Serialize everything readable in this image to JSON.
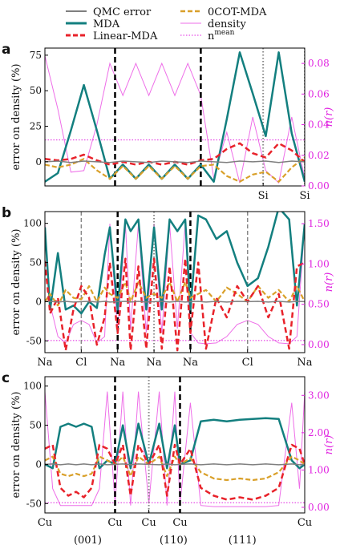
{
  "legend": {
    "entries": [
      {
        "label": "QMC error",
        "color": "#7f7f7f",
        "style": "solid"
      },
      {
        "label": "MDA",
        "color": "#137f7f",
        "style": "solid-thick"
      },
      {
        "label": "Linear-MDA",
        "color": "#e8222a",
        "style": "dashed-thick"
      },
      {
        "label": "0COT-MDA",
        "color": "#d9a02a",
        "style": "dashed"
      },
      {
        "label": "density",
        "color": "#ee6ee8",
        "style": "solid-thin"
      },
      {
        "label": "n^mean",
        "color": "#e020e0",
        "style": "dotted"
      }
    ]
  },
  "colors": {
    "qmc": "#7f7f7f",
    "mda": "#137f7f",
    "linear": "#e8222a",
    "cot": "#d9a02a",
    "density": "#ee6ee8",
    "nmean": "#e020e0",
    "right_axis": "#e020e0"
  },
  "chart_data": [
    {
      "panel": "a",
      "type": "line",
      "ylabel": "error on density (%)",
      "ylabel_right": "n(r)",
      "ylim": [
        -17,
        80
      ],
      "y_ticks": [
        -25,
        0,
        25,
        50,
        75
      ],
      "ylim_right": [
        0.0,
        0.09
      ],
      "y_ticks_right": [
        "0.00",
        "0.02",
        "0.04",
        "0.06",
        "0.08"
      ],
      "x_tick_labels": [
        {
          "x": 0.84,
          "label": "Si"
        },
        {
          "x": 1.0,
          "label": "Si"
        }
      ],
      "black_dashed_x": [
        0.27,
        0.6
      ],
      "gray_dotted_x": [
        0.84,
        1.0
      ],
      "nmean_right": 0.03,
      "x": [
        0.0,
        0.05,
        0.1,
        0.15,
        0.2,
        0.25,
        0.3,
        0.35,
        0.4,
        0.45,
        0.5,
        0.55,
        0.6,
        0.65,
        0.7,
        0.75,
        0.8,
        0.85,
        0.9,
        0.95,
        1.0
      ],
      "series": [
        {
          "name": "QMC error",
          "key": "qmc",
          "values": [
            0,
            0.5,
            -0.5,
            0.5,
            0,
            -0.5,
            0.5,
            0,
            -0.5,
            0.5,
            0,
            -0.5,
            0.5,
            0,
            -0.5,
            0.5,
            0,
            0.5,
            -0.5,
            0.5,
            0
          ]
        },
        {
          "name": "MDA",
          "key": "mda",
          "values": [
            -14,
            -8,
            22,
            54,
            22,
            -12,
            -2,
            -12,
            -2,
            -12,
            -2,
            -12,
            -2,
            -14,
            30,
            77,
            48,
            18,
            77,
            20,
            -14
          ]
        },
        {
          "name": "Linear-MDA",
          "key": "linear",
          "values": [
            2,
            1,
            2,
            5,
            1,
            -2,
            0,
            -2,
            0,
            -2,
            0,
            -2,
            1,
            2,
            9,
            13,
            6,
            3,
            13,
            8,
            0
          ]
        },
        {
          "name": "0COT-MDA",
          "key": "cot",
          "values": [
            -2,
            -4,
            -2,
            2,
            -6,
            -12,
            -3,
            -12,
            -3,
            -12,
            -3,
            -12,
            -3,
            -2,
            -10,
            -14,
            -9,
            -7,
            -14,
            -4,
            3
          ]
        }
      ],
      "density_right": [
        0.085,
        0.05,
        0.009,
        0.01,
        0.04,
        0.08,
        0.059,
        0.08,
        0.059,
        0.08,
        0.059,
        0.08,
        0.059,
        0.005,
        0.035,
        0.002,
        0.045,
        0.01,
        0.002,
        0.045,
        0.005
      ]
    },
    {
      "panel": "b",
      "type": "line",
      "ylabel": "error on density (%)",
      "ylabel_right": "n(r)",
      "ylim": [
        -65,
        115
      ],
      "y_ticks": [
        -50,
        0,
        50,
        100
      ],
      "ylim_right": [
        -0.1,
        1.65
      ],
      "y_ticks_right": [
        "0.00",
        "0.50",
        "1.00",
        "1.50"
      ],
      "x_tick_labels": [
        {
          "x": 0.0,
          "label": "Na"
        },
        {
          "x": 0.14,
          "label": "Cl"
        },
        {
          "x": 0.28,
          "label": "Na"
        },
        {
          "x": 0.42,
          "label": "Na"
        },
        {
          "x": 0.56,
          "label": "Na"
        },
        {
          "x": 0.78,
          "label": "Cl"
        },
        {
          "x": 1.0,
          "label": "Na"
        }
      ],
      "black_dashed_x": [
        0.28,
        0.56
      ],
      "gray_dashed_x": [
        0.14,
        0.78
      ],
      "gray_dotted_x": [
        0.42
      ],
      "nmean_right": 0.05,
      "x": [
        0.0,
        0.02,
        0.05,
        0.08,
        0.11,
        0.14,
        0.17,
        0.2,
        0.23,
        0.25,
        0.28,
        0.31,
        0.33,
        0.36,
        0.39,
        0.42,
        0.45,
        0.48,
        0.51,
        0.54,
        0.56,
        0.59,
        0.62,
        0.66,
        0.7,
        0.74,
        0.78,
        0.82,
        0.86,
        0.9,
        0.94,
        0.97,
        1.0
      ],
      "series": [
        {
          "name": "QMC error",
          "key": "qmc",
          "values": [
            0,
            0.5,
            -0.5,
            0.5,
            -0.5,
            0,
            0.5,
            -0.5,
            0.5,
            -0.5,
            0,
            0.5,
            -0.5,
            0.5,
            -0.5,
            0,
            0.5,
            -0.5,
            0.5,
            -0.5,
            0,
            0.5,
            -0.5,
            0.5,
            -0.5,
            0.5,
            0,
            0.5,
            -0.5,
            0.5,
            -0.5,
            0.5,
            0
          ]
        },
        {
          "name": "MDA",
          "key": "mda",
          "values": [
            95,
            -10,
            62,
            -10,
            -5,
            -15,
            0,
            -8,
            60,
            95,
            -10,
            105,
            90,
            105,
            -10,
            95,
            -10,
            105,
            90,
            105,
            -10,
            110,
            105,
            80,
            90,
            50,
            20,
            30,
            70,
            120,
            105,
            -5,
            100
          ]
        },
        {
          "name": "Linear-MDA",
          "key": "linear",
          "values": [
            52,
            -15,
            5,
            -62,
            -10,
            20,
            5,
            -55,
            -20,
            50,
            -40,
            55,
            -62,
            45,
            -60,
            55,
            -60,
            45,
            -62,
            55,
            -40,
            50,
            -60,
            5,
            -20,
            20,
            0,
            20,
            -20,
            10,
            -60,
            45,
            50
          ]
        },
        {
          "name": "0COT-MDA",
          "key": "cot",
          "values": [
            0,
            10,
            -5,
            15,
            5,
            3,
            20,
            0,
            18,
            10,
            5,
            25,
            0,
            25,
            5,
            10,
            5,
            25,
            0,
            25,
            5,
            10,
            15,
            0,
            18,
            10,
            0,
            20,
            5,
            15,
            0,
            20,
            0
          ]
        }
      ],
      "density_right": [
        1.5,
        0.5,
        0.1,
        0.02,
        0.25,
        0.3,
        0.25,
        0.02,
        0.1,
        1.5,
        0.15,
        1.5,
        0.2,
        1.5,
        0.15,
        1.5,
        0.15,
        1.5,
        0.2,
        1.5,
        0.15,
        0.02,
        0.01,
        0.02,
        0.1,
        0.25,
        0.3,
        0.25,
        0.1,
        0.02,
        0.01,
        0.1,
        1.5
      ]
    },
    {
      "panel": "c",
      "type": "line",
      "ylabel": "error on density (%)",
      "ylabel_right": "n(r)",
      "ylim": [
        -62,
        112
      ],
      "y_ticks": [
        -50,
        0,
        50,
        100
      ],
      "ylim_right": [
        -0.15,
        3.5
      ],
      "y_ticks_right": [
        "0.00",
        "1.00",
        "2.00",
        "3.00"
      ],
      "x_tick_labels": [
        {
          "x": 0.0,
          "label": "Cu"
        },
        {
          "x": 0.27,
          "label": "Cu"
        },
        {
          "x": 0.4,
          "label": "Cu"
        },
        {
          "x": 0.52,
          "label": "Cu"
        },
        {
          "x": 1.0,
          "label": "Cu"
        }
      ],
      "segment_labels": [
        {
          "x": 0.165,
          "label": "(001)"
        },
        {
          "x": 0.495,
          "label": "(110)"
        },
        {
          "x": 0.76,
          "label": "(111)"
        }
      ],
      "black_dashed_x": [
        0.27,
        0.52
      ],
      "gray_dotted_x": [
        0.4
      ],
      "nmean_left": -49,
      "x": [
        0.0,
        0.03,
        0.06,
        0.09,
        0.12,
        0.15,
        0.18,
        0.21,
        0.24,
        0.27,
        0.3,
        0.33,
        0.36,
        0.4,
        0.44,
        0.47,
        0.5,
        0.52,
        0.56,
        0.6,
        0.65,
        0.7,
        0.75,
        0.8,
        0.85,
        0.9,
        0.95,
        0.98,
        1.0
      ],
      "series": [
        {
          "name": "QMC error",
          "key": "qmc",
          "values": [
            0,
            0.5,
            -0.5,
            0.5,
            -0.5,
            0.5,
            -0.5,
            0.5,
            -0.5,
            0,
            0.5,
            -0.5,
            0.5,
            0,
            -0.5,
            0.5,
            -0.5,
            0,
            0.5,
            -0.5,
            0.5,
            -0.5,
            0.5,
            -0.5,
            0.5,
            -0.5,
            0.5,
            -0.5,
            0
          ]
        },
        {
          "name": "MDA",
          "key": "mda",
          "values": [
            0,
            -5,
            48,
            52,
            48,
            52,
            48,
            -5,
            5,
            0,
            50,
            -5,
            52,
            0,
            52,
            -5,
            50,
            0,
            5,
            55,
            57,
            55,
            57,
            58,
            59,
            58,
            5,
            -5,
            0
          ]
        },
        {
          "name": "Linear-MDA",
          "key": "linear",
          "values": [
            20,
            25,
            -30,
            -40,
            -35,
            -42,
            -30,
            25,
            20,
            0,
            25,
            -40,
            25,
            0,
            25,
            -40,
            25,
            0,
            20,
            -30,
            -40,
            -45,
            -42,
            -45,
            -40,
            -30,
            25,
            20,
            0
          ]
        },
        {
          "name": "0COT-MDA",
          "key": "cot",
          "values": [
            5,
            10,
            -12,
            -15,
            -12,
            -15,
            -12,
            10,
            5,
            0,
            10,
            -15,
            10,
            0,
            10,
            -15,
            10,
            0,
            8,
            -10,
            -18,
            -20,
            -18,
            -20,
            -18,
            -10,
            10,
            5,
            0
          ]
        }
      ],
      "density_right": [
        3.1,
        0.5,
        0.05,
        0.05,
        0.05,
        0.05,
        0.05,
        0.5,
        3.1,
        0.1,
        3.1,
        0.05,
        3.1,
        0.1,
        3.1,
        0.05,
        3.1,
        0.1,
        2.8,
        0.05,
        0.02,
        0.02,
        0.02,
        0.02,
        0.02,
        0.05,
        2.8,
        0.5,
        3.1
      ]
    }
  ]
}
